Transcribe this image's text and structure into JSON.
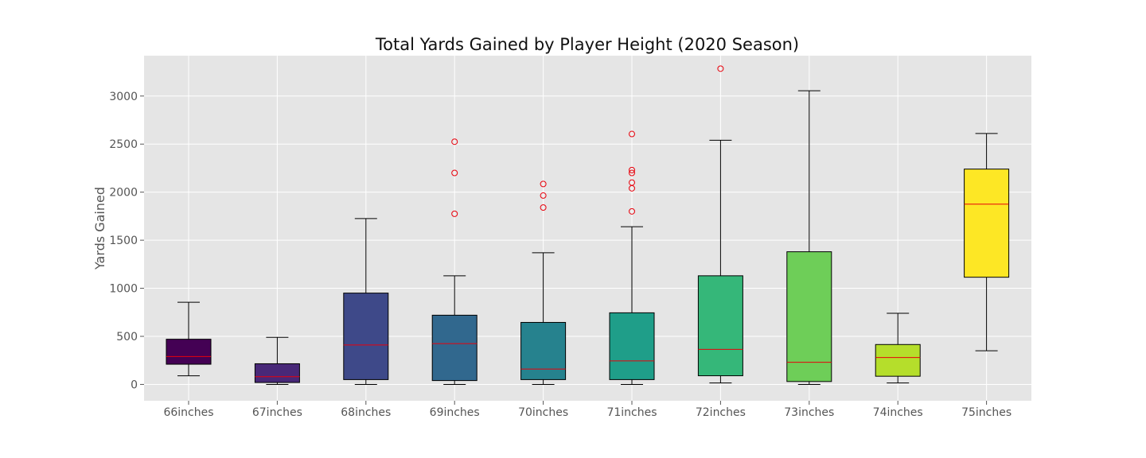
{
  "chart_data": {
    "type": "box",
    "title": "Total Yards Gained by Player Height (2020 Season)",
    "xlabel": "",
    "ylabel": "Yards Gained",
    "ylim": [
      -170,
      3420
    ],
    "yticks": [
      0,
      500,
      1000,
      1500,
      2000,
      2500,
      3000
    ],
    "grid": true,
    "background": "#e5e5e5",
    "grid_color": "#ffffff",
    "median_color": "#e8000b",
    "outlier_color": "#e8000b",
    "categories": [
      "66inches",
      "67inches",
      "68inches",
      "69inches",
      "70inches",
      "71inches",
      "72inches",
      "73inches",
      "74inches",
      "75inches"
    ],
    "boxes": [
      {
        "category": "66inches",
        "whisker_low": 90,
        "q1": 210,
        "median": 290,
        "q3": 470,
        "whisker_high": 855,
        "outliers": [],
        "color": "#440154"
      },
      {
        "category": "67inches",
        "whisker_low": 0,
        "q1": 20,
        "median": 80,
        "q3": 215,
        "whisker_high": 490,
        "outliers": [],
        "color": "#482878"
      },
      {
        "category": "68inches",
        "whisker_low": 0,
        "q1": 50,
        "median": 410,
        "q3": 950,
        "whisker_high": 1725,
        "outliers": [],
        "color": "#3e4989"
      },
      {
        "category": "69inches",
        "whisker_low": 0,
        "q1": 40,
        "median": 425,
        "q3": 720,
        "whisker_high": 1130,
        "outliers": [
          1775,
          2200,
          2525
        ],
        "color": "#31688e"
      },
      {
        "category": "70inches",
        "whisker_low": 0,
        "q1": 50,
        "median": 160,
        "q3": 645,
        "whisker_high": 1370,
        "outliers": [
          1840,
          1965,
          2085
        ],
        "color": "#26828e"
      },
      {
        "category": "71inches",
        "whisker_low": 0,
        "q1": 50,
        "median": 245,
        "q3": 745,
        "whisker_high": 1640,
        "outliers": [
          1800,
          2040,
          2100,
          2200,
          2230,
          2605
        ],
        "color": "#1f9e89"
      },
      {
        "category": "72inches",
        "whisker_low": 15,
        "q1": 90,
        "median": 365,
        "q3": 1130,
        "whisker_high": 2540,
        "outliers": [
          3285
        ],
        "color": "#35b779"
      },
      {
        "category": "73inches",
        "whisker_low": 0,
        "q1": 30,
        "median": 230,
        "q3": 1380,
        "whisker_high": 3055,
        "outliers": [],
        "color": "#6ece58"
      },
      {
        "category": "74inches",
        "whisker_low": 15,
        "q1": 85,
        "median": 280,
        "q3": 415,
        "whisker_high": 740,
        "outliers": [],
        "color": "#b5de2b"
      },
      {
        "category": "75inches",
        "whisker_low": 350,
        "q1": 1115,
        "median": 1875,
        "q3": 2240,
        "whisker_high": 2610,
        "outliers": [],
        "color": "#fde725"
      }
    ]
  }
}
